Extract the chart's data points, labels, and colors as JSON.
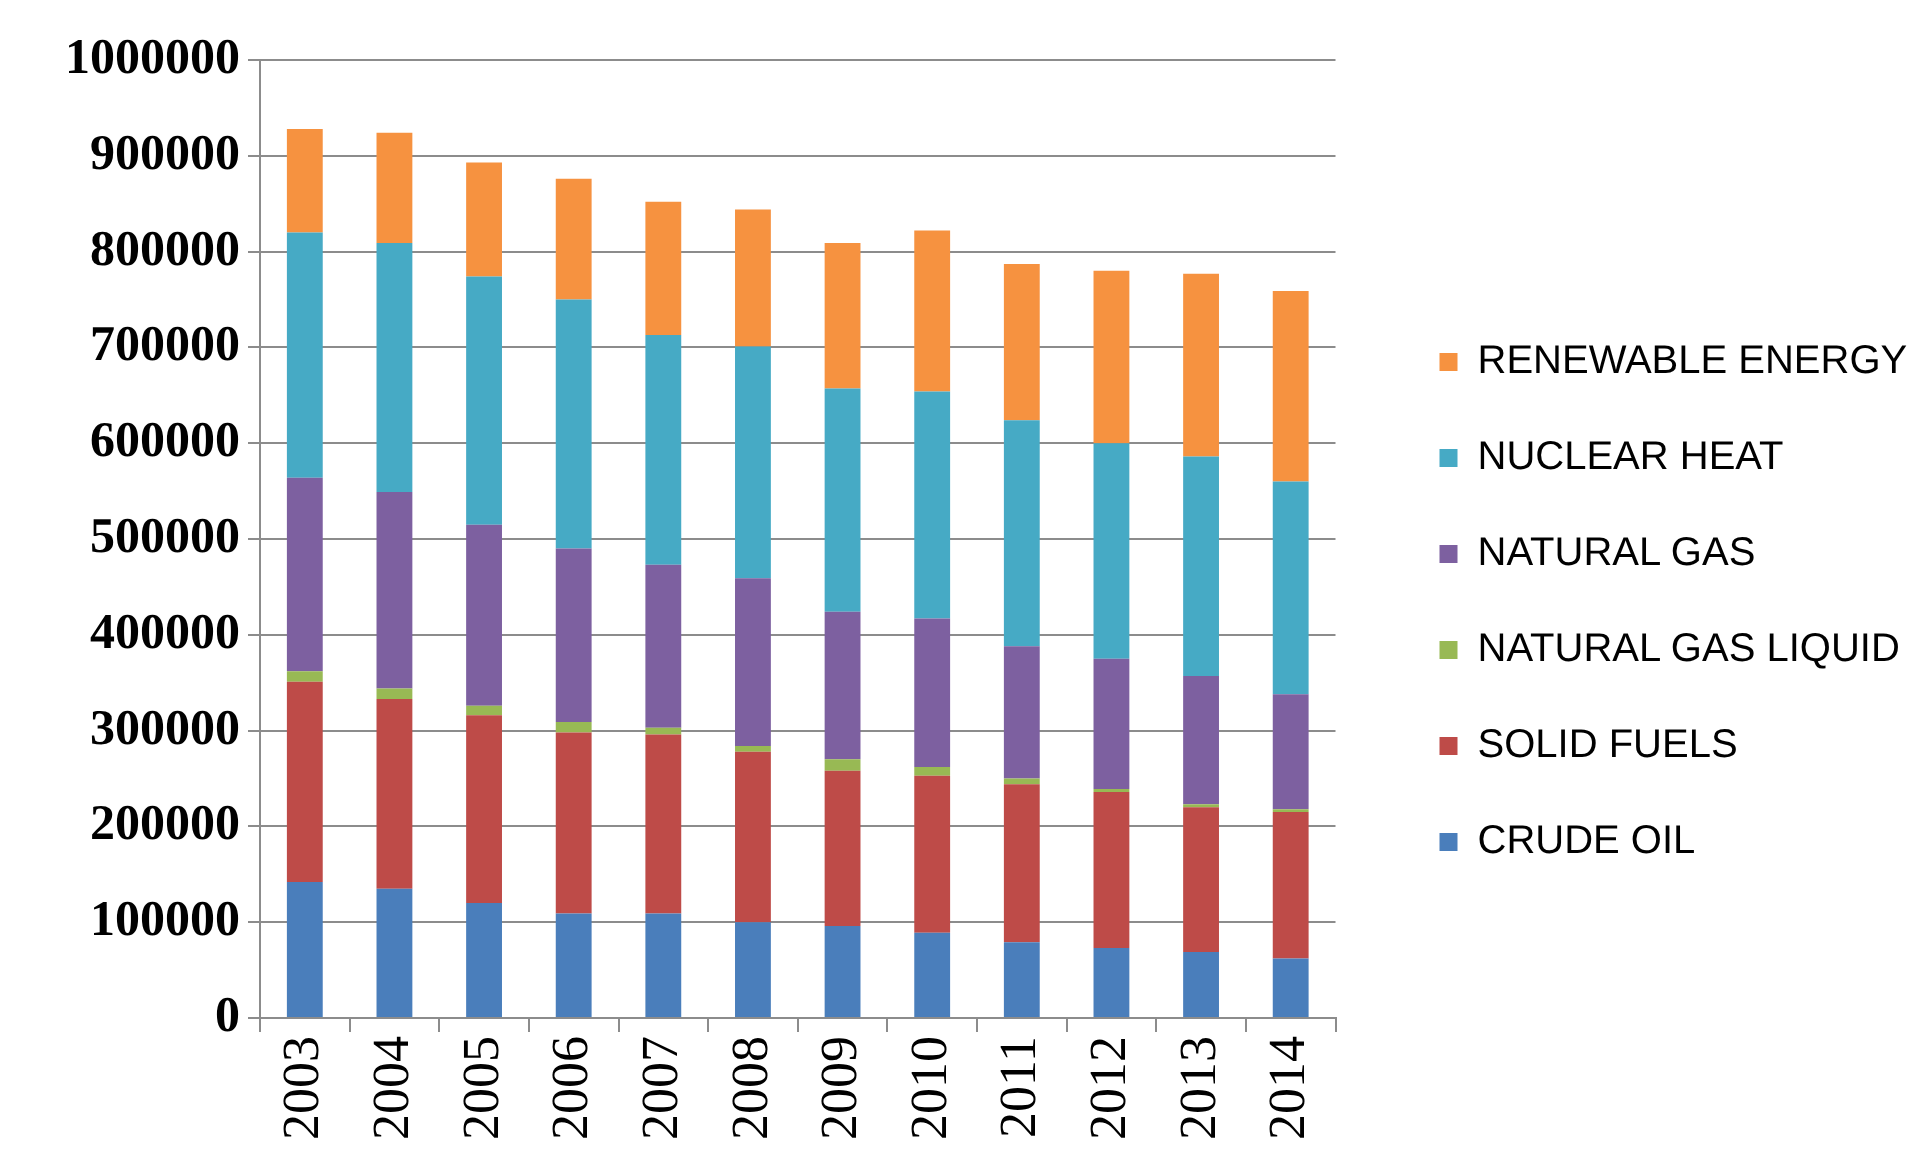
{
  "chart_data": {
    "type": "bar",
    "stacked": true,
    "categories": [
      "2003",
      "2004",
      "2005",
      "2006",
      "2007",
      "2008",
      "2009",
      "2010",
      "2011",
      "2012",
      "2013",
      "2014"
    ],
    "ylim": [
      0,
      1000000
    ],
    "yticks": [
      0,
      100000,
      200000,
      300000,
      400000,
      500000,
      600000,
      700000,
      800000,
      900000,
      1000000
    ],
    "grid": "y",
    "legend": "right",
    "series": [
      {
        "name": "CRUDE OIL",
        "color": "#4a7ebb",
        "values": [
          142000,
          135000,
          120000,
          109000,
          109000,
          100000,
          96000,
          89000,
          79000,
          73000,
          69000,
          62000
        ]
      },
      {
        "name": "SOLID FUELS",
        "color": "#be4b48",
        "values": [
          209000,
          198000,
          196000,
          189000,
          187000,
          178000,
          162000,
          164000,
          165000,
          163000,
          151000,
          153000
        ]
      },
      {
        "name": "NATURAL GAS LIQUID",
        "color": "#98b954",
        "values": [
          11000,
          11000,
          10000,
          11000,
          7000,
          6000,
          12000,
          9000,
          6000,
          3000,
          3000,
          3000
        ]
      },
      {
        "name": "NATURAL GAS",
        "color": "#7d60a0",
        "values": [
          202000,
          205000,
          189000,
          181000,
          170000,
          175000,
          154000,
          155000,
          138000,
          136000,
          134000,
          120000
        ]
      },
      {
        "name": "NUCLEAR HEAT",
        "color": "#46aac5",
        "values": [
          256000,
          260000,
          259000,
          260000,
          240000,
          242000,
          233000,
          237000,
          236000,
          225000,
          229000,
          222000
        ]
      },
      {
        "name": "RENEWABLE ENERGY",
        "color": "#f69240",
        "values": [
          108000,
          115000,
          119000,
          126000,
          139000,
          143000,
          152000,
          168000,
          163000,
          180000,
          191000,
          199000
        ]
      }
    ]
  }
}
